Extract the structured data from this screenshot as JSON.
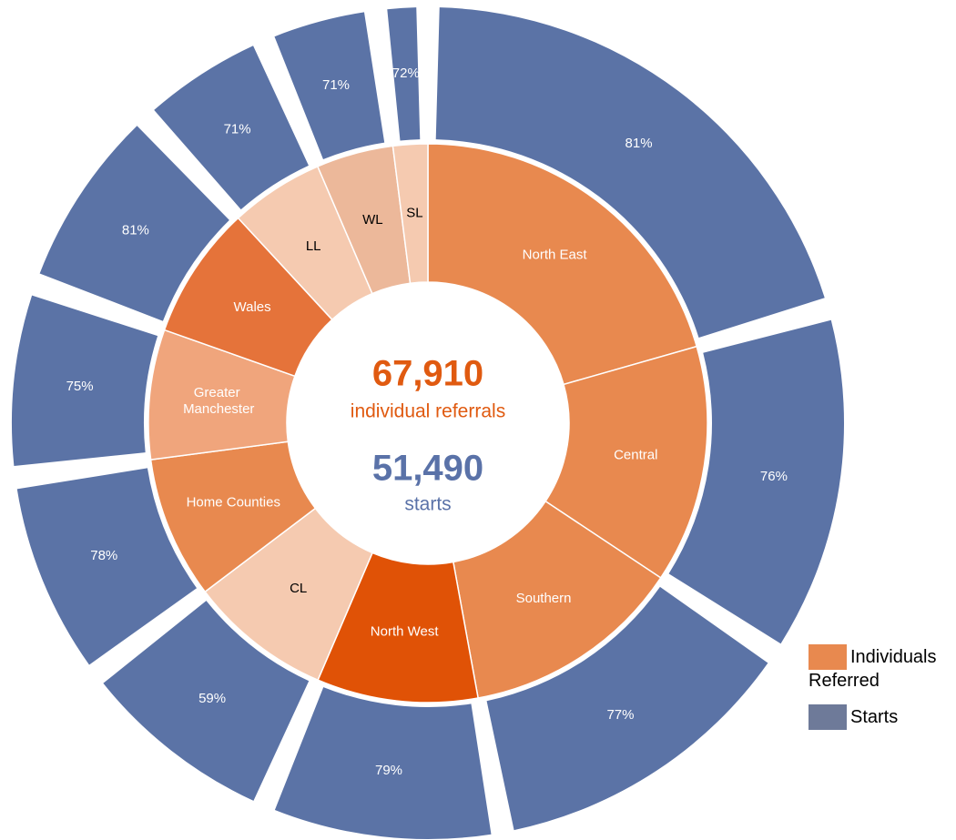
{
  "chart_data": {
    "type": "sunburst",
    "categories": [
      "North East",
      "Central",
      "Southern",
      "North West",
      "CL",
      "Home Counties",
      "Greater Manchester",
      "Wales",
      "LL",
      "WL",
      "SL"
    ],
    "series": [
      {
        "name": "Individuals Referred",
        "color": "#e8894f",
        "colors": [
          "#e8894f",
          "#e8894f",
          "#e8894f",
          "#e05206",
          "#f5cab0",
          "#e8894f",
          "#f0a57c",
          "#e5733a",
          "#f5cab0",
          "#ecb89a",
          "#f5cab0"
        ],
        "values": [
          13960,
          9340,
          8680,
          6320,
          5600,
          5580,
          5090,
          5230,
          3680,
          3020,
          1360
        ]
      },
      {
        "name": "Starts",
        "color": "#5b73a6",
        "legend_color": "#6e7a99",
        "values": [
          81,
          76,
          77,
          79,
          59,
          78,
          75,
          81,
          71,
          71,
          72
        ],
        "value_labels": [
          "81%",
          "76%",
          "77%",
          "79%",
          "59%",
          "78%",
          "75%",
          "81%",
          "71%",
          "71%",
          "72%"
        ]
      }
    ],
    "annotations": [
      {
        "value": 67910,
        "label": "67,910",
        "caption": "individual referrals",
        "color": "#e05a10"
      },
      {
        "value": 51490,
        "label": "51,490",
        "caption": "starts",
        "color": "#5a72a8"
      }
    ]
  }
}
